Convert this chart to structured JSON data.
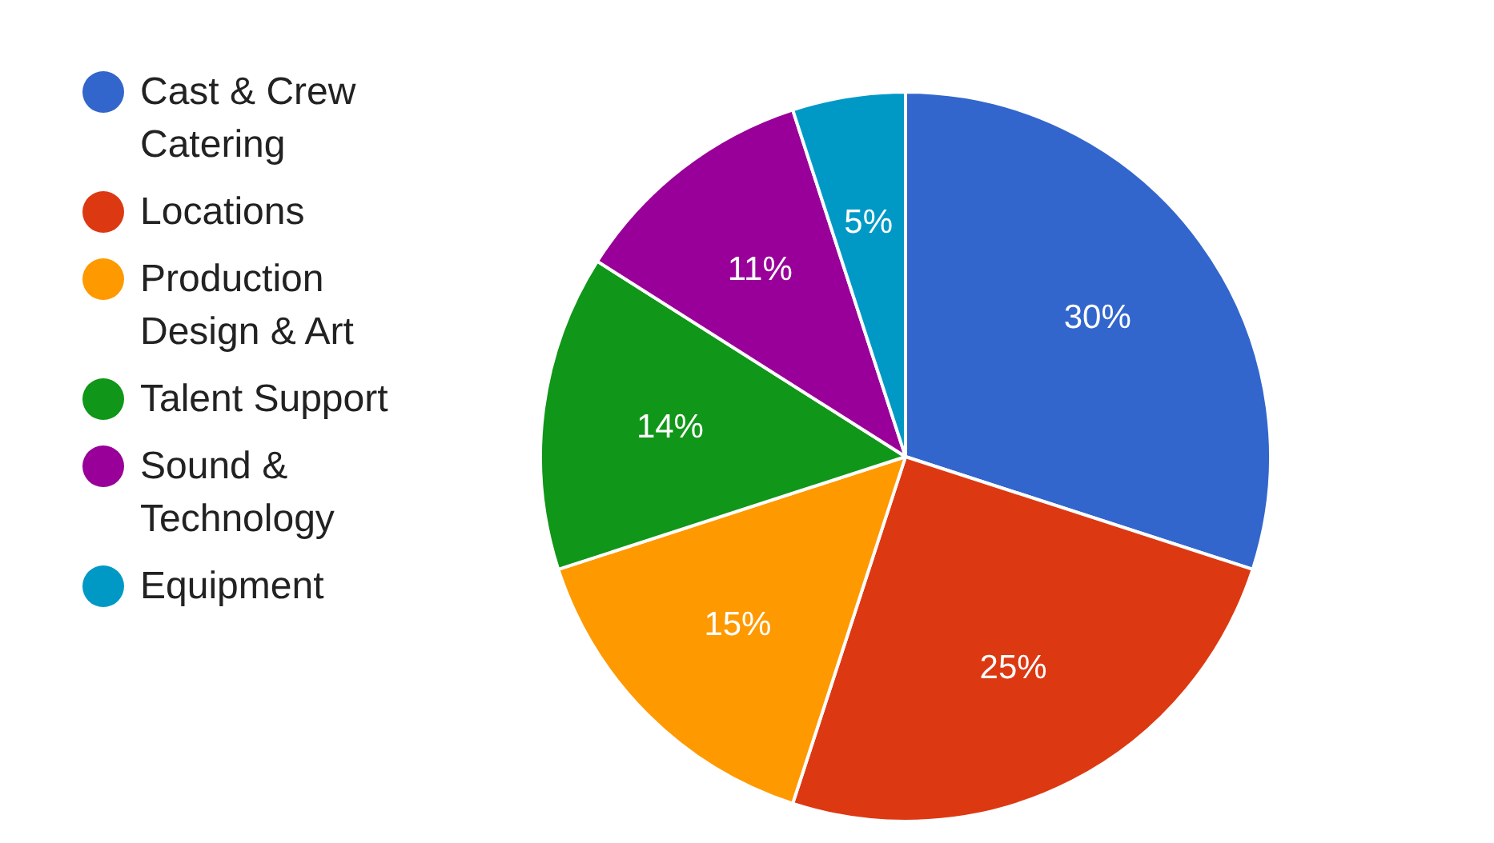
{
  "chart_data": {
    "type": "pie",
    "categories": [
      "Cast & Crew Catering",
      "Locations",
      "Production Design & Art",
      "Talent Support",
      "Sound & Technology",
      "Equipment"
    ],
    "values": [
      30,
      25,
      15,
      14,
      11,
      5
    ],
    "colors": [
      "#3366cc",
      "#dc3912",
      "#ff9900",
      "#109618",
      "#990099",
      "#0099c6"
    ],
    "value_labels": [
      "30%",
      "25%",
      "15%",
      "14%",
      "11%",
      "5%"
    ],
    "legend": "left"
  }
}
